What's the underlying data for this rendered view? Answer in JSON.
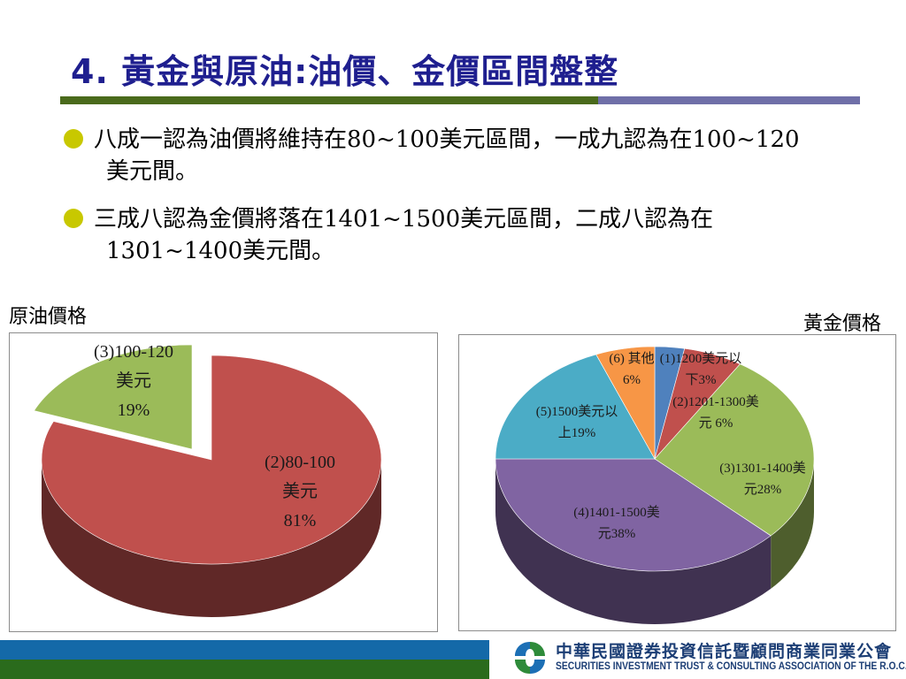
{
  "slide": {
    "title": "4. 黃金與原油:油價、金價區間盤整",
    "bullets": [
      {
        "line1": "八成一認為油價將維持在80~100美元區間，一成九認為在100~120",
        "line2": "美元間。"
      },
      {
        "line1": "三成八認為金價將落在1401~1500美元區間，二成八認為在",
        "line2": "1301~1400美元間。"
      }
    ]
  },
  "footer": {
    "org_cn": "中華民國證券投資信託暨顧問商業同業公會",
    "org_en": "SECURITIES INVESTMENT TRUST & CONSULTING ASSOCIATION OF THE R.O.C.",
    "logo_icon": "sitca-logo-icon"
  },
  "chart_data": [
    {
      "type": "pie",
      "title": "原油價格",
      "slices": [
        {
          "label_lines": [
            "(2)80-100",
            "美元",
            "81%"
          ],
          "value": 81,
          "color": "#c0504d"
        },
        {
          "label_lines": [
            "(3)100-120",
            "美元",
            "19%"
          ],
          "value": 19,
          "color": "#9bbb59"
        }
      ]
    },
    {
      "type": "pie",
      "title": "黃金價格",
      "slices": [
        {
          "label_lines": [
            "(1)1200美元以",
            "下3%"
          ],
          "value": 3,
          "color": "#4f81bd"
        },
        {
          "label_lines": [
            "(2)1201-1300美",
            "元 6%"
          ],
          "value": 6,
          "color": "#c0504d"
        },
        {
          "label_lines": [
            "(3)1301-1400美",
            "元28%"
          ],
          "value": 28,
          "color": "#9bbb59"
        },
        {
          "label_lines": [
            "(4)1401-1500美",
            "元38%"
          ],
          "value": 38,
          "color": "#8064a2"
        },
        {
          "label_lines": [
            "(5)1500美元以",
            "上19%"
          ],
          "value": 19,
          "color": "#4bacc6"
        },
        {
          "label_lines": [
            "(6) 其他",
            "6%"
          ],
          "value": 6,
          "color": "#f79646"
        }
      ]
    }
  ]
}
